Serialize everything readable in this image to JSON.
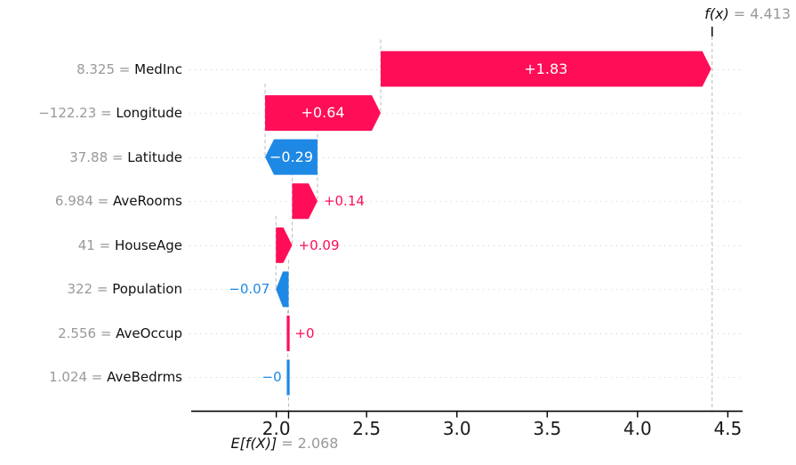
{
  "chart_data": {
    "type": "bar",
    "subtype": "shap-waterfall",
    "fx": {
      "name": "f(x)",
      "eq": "= 4.413",
      "value": 4.413
    },
    "base": {
      "name": "E[f(X)]",
      "eq": "= 2.068",
      "value": 2.068
    },
    "features": [
      {
        "name": "MedInc",
        "data_value": "8.325",
        "shap": 1.83,
        "bar_label": "+1.83",
        "label_inside": true
      },
      {
        "name": "Longitude",
        "data_value": "−122.23",
        "shap": 0.64,
        "bar_label": "+0.64",
        "label_inside": true
      },
      {
        "name": "Latitude",
        "data_value": "37.88",
        "shap": -0.29,
        "bar_label": "−0.29",
        "label_inside": true
      },
      {
        "name": "AveRooms",
        "data_value": "6.984",
        "shap": 0.14,
        "bar_label": "+0.14",
        "label_inside": false
      },
      {
        "name": "HouseAge",
        "data_value": "41",
        "shap": 0.09,
        "bar_label": "+0.09",
        "label_inside": false
      },
      {
        "name": "Population",
        "data_value": "322",
        "shap": -0.07,
        "bar_label": "−0.07",
        "label_inside": false
      },
      {
        "name": "AveOccup",
        "data_value": "2.556",
        "shap": 0.004,
        "bar_label": "+0",
        "label_inside": false
      },
      {
        "name": "AveBedrms",
        "data_value": "1.024",
        "shap": -0.004,
        "bar_label": "−0",
        "label_inside": false
      }
    ],
    "equals_separator": " = ",
    "xticks": [
      {
        "label": "2.0",
        "value": 2.0
      },
      {
        "label": "2.5",
        "value": 2.5
      },
      {
        "label": "3.0",
        "value": 3.0
      },
      {
        "label": "3.5",
        "value": 3.5
      },
      {
        "label": "4.0",
        "value": 4.0
      },
      {
        "label": "4.5",
        "value": 4.5
      }
    ],
    "xlim": [
      1.529,
      4.582
    ],
    "grid": "dotted horizontal row guides",
    "legend": "none",
    "colors": {
      "positive": "#ff0d57",
      "negative": "#1e88e5",
      "value_text": "#999999",
      "feature_text": "#111111",
      "dashes": "#bbbbbb",
      "row_dots": "#cccccc",
      "axis": "#000000",
      "bar_label_inside": "#ffffff"
    }
  }
}
